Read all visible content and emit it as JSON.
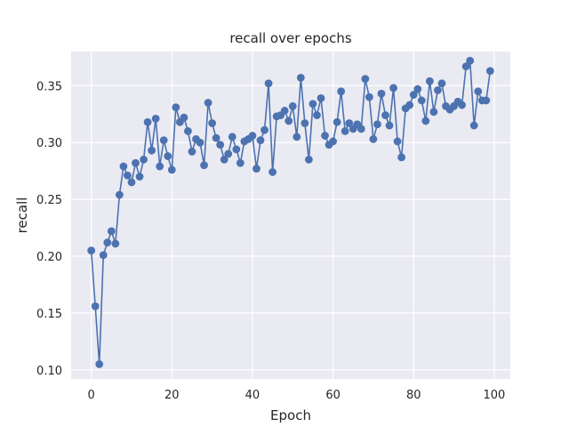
{
  "chart_data": {
    "type": "line",
    "title": "recall over epochs",
    "xlabel": "Epoch",
    "ylabel": "recall",
    "xlim": [
      -5,
      104
    ],
    "ylim": [
      0.092,
      0.38
    ],
    "xticks": [
      0,
      20,
      40,
      60,
      80,
      100
    ],
    "yticks": [
      0.1,
      0.15,
      0.2,
      0.25,
      0.3,
      0.35
    ],
    "xtick_labels": [
      "0",
      "20",
      "40",
      "60",
      "80",
      "100"
    ],
    "ytick_labels": [
      "0.10",
      "0.15",
      "0.20",
      "0.25",
      "0.30",
      "0.35"
    ],
    "grid": true,
    "marker": "circle",
    "colors": {
      "background": "#eaeaf2",
      "grid": "#ffffff",
      "line": "#4c72b0"
    },
    "x": [
      0,
      1,
      2,
      3,
      4,
      5,
      6,
      7,
      8,
      9,
      10,
      11,
      12,
      13,
      14,
      15,
      16,
      17,
      18,
      19,
      20,
      21,
      22,
      23,
      24,
      25,
      26,
      27,
      28,
      29,
      30,
      31,
      32,
      33,
      34,
      35,
      36,
      37,
      38,
      39,
      40,
      41,
      42,
      43,
      44,
      45,
      46,
      47,
      48,
      49,
      50,
      51,
      52,
      53,
      54,
      55,
      56,
      57,
      58,
      59,
      60,
      61,
      62,
      63,
      64,
      65,
      66,
      67,
      68,
      69,
      70,
      71,
      72,
      73,
      74,
      75,
      76,
      77,
      78,
      79,
      80,
      81,
      82,
      83,
      84,
      85,
      86,
      87,
      88,
      89,
      90,
      91,
      92,
      93,
      94,
      95,
      96,
      97,
      98,
      99
    ],
    "y": [
      0.205,
      0.156,
      0.105,
      0.201,
      0.212,
      0.222,
      0.211,
      0.254,
      0.279,
      0.271,
      0.265,
      0.282,
      0.27,
      0.285,
      0.318,
      0.293,
      0.321,
      0.279,
      0.302,
      0.288,
      0.276,
      0.331,
      0.318,
      0.322,
      0.31,
      0.292,
      0.303,
      0.3,
      0.28,
      0.335,
      0.317,
      0.304,
      0.298,
      0.285,
      0.29,
      0.305,
      0.294,
      0.282,
      0.301,
      0.303,
      0.306,
      0.277,
      0.302,
      0.311,
      0.352,
      0.274,
      0.323,
      0.324,
      0.328,
      0.319,
      0.332,
      0.305,
      0.357,
      0.317,
      0.285,
      0.334,
      0.324,
      0.339,
      0.306,
      0.298,
      0.301,
      0.318,
      0.345,
      0.31,
      0.317,
      0.312,
      0.316,
      0.312,
      0.356,
      0.34,
      0.303,
      0.316,
      0.343,
      0.324,
      0.315,
      0.348,
      0.301,
      0.287,
      0.33,
      0.333,
      0.342,
      0.347,
      0.337,
      0.319,
      0.354,
      0.327,
      0.346,
      0.352,
      0.332,
      0.329,
      0.332,
      0.336,
      0.333,
      0.367,
      0.372,
      0.315,
      0.345,
      0.337,
      0.337,
      0.363
    ]
  }
}
